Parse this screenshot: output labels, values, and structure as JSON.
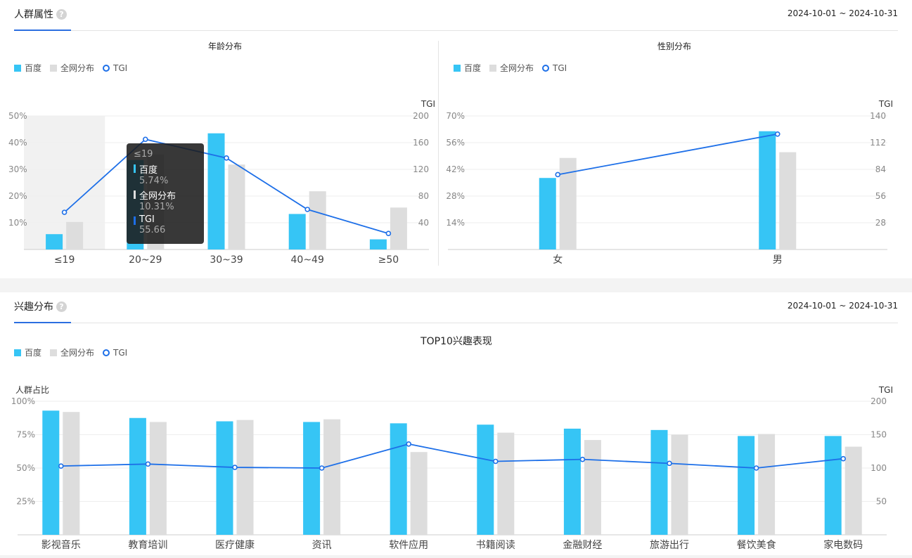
{
  "section_demographics": {
    "title": "人群属性",
    "date_range": "2024-10-01 ~ 2024-10-31"
  },
  "section_interests": {
    "title": "兴趣分布",
    "date_range": "2024-10-01 ~ 2024-10-31"
  },
  "help_glyph": "?",
  "tooltip": {
    "category": "≤19",
    "items": [
      {
        "name": "百度",
        "value": "5.74%",
        "color": "#36c5f5"
      },
      {
        "name": "全网分布",
        "value": "10.31%",
        "color": "#dddddd"
      },
      {
        "name": "TGI",
        "value": "55.66",
        "color": "#1d6fe8"
      }
    ]
  },
  "colors": {
    "baidu": "#36c5f5",
    "network": "#dddddd",
    "tgi": "#1d6fe8"
  },
  "chart_data": [
    {
      "type": "bar",
      "title": "年龄分布",
      "legend": [
        "百度",
        "全网分布",
        "TGI"
      ],
      "categories": [
        "≤19",
        "20~29",
        "30~39",
        "40~49",
        "≥50"
      ],
      "series": [
        {
          "name": "百度",
          "values": [
            5.74,
            33.5,
            43.5,
            13.3,
            3.8
          ]
        },
        {
          "name": "全网分布",
          "values": [
            10.31,
            35.5,
            31.8,
            21.8,
            15.7
          ]
        },
        {
          "name": "TGI",
          "values": [
            55.66,
            165,
            137,
            60,
            24
          ],
          "axis": "right",
          "type": "line"
        }
      ],
      "ylim": [
        0,
        50
      ],
      "y_ticks": [
        "10%",
        "20%",
        "30%",
        "40%",
        "50%"
      ],
      "y2label": "TGI",
      "y2lim": [
        0,
        200
      ],
      "y2_ticks": [
        "40",
        "80",
        "120",
        "160",
        "200"
      ],
      "grid": true,
      "legend_position": "top-left",
      "highlighted_category": "≤19"
    },
    {
      "type": "bar",
      "title": "性别分布",
      "legend": [
        "百度",
        "全网分布",
        "TGI"
      ],
      "categories": [
        "女",
        "男"
      ],
      "series": [
        {
          "name": "百度",
          "values": [
            37.5,
            62
          ]
        },
        {
          "name": "全网分布",
          "values": [
            48,
            51
          ]
        },
        {
          "name": "TGI",
          "values": [
            78.5,
            121
          ],
          "axis": "right",
          "type": "line"
        }
      ],
      "ylim": [
        0,
        70
      ],
      "y_ticks": [
        "14%",
        "28%",
        "42%",
        "56%",
        "70%"
      ],
      "y2label": "TGI",
      "y2lim": [
        0,
        140
      ],
      "y2_ticks": [
        "28",
        "56",
        "84",
        "112",
        "140"
      ],
      "grid": true,
      "legend_position": "top-left"
    },
    {
      "type": "bar",
      "title": "TOP10兴趣表现",
      "legend": [
        "百度",
        "全网分布",
        "TGI"
      ],
      "categories": [
        "影视音乐",
        "教育培训",
        "医疗健康",
        "资讯",
        "软件应用",
        "书籍阅读",
        "金融财经",
        "旅游出行",
        "餐饮美食",
        "家电数码"
      ],
      "series": [
        {
          "name": "百度",
          "values": [
            93,
            87.5,
            85,
            84.5,
            83.5,
            82.5,
            79.5,
            78.5,
            74,
            74
          ]
        },
        {
          "name": "全网分布",
          "values": [
            92,
            84.5,
            86,
            86.5,
            62,
            76.5,
            71,
            75,
            75.5,
            66
          ]
        },
        {
          "name": "TGI",
          "values": [
            103,
            106,
            101,
            100,
            136,
            110,
            113,
            107,
            100,
            114
          ],
          "axis": "right",
          "type": "line"
        }
      ],
      "ylabel": "人群占比",
      "ylim": [
        0,
        100
      ],
      "y_ticks": [
        "25%",
        "50%",
        "75%",
        "100%"
      ],
      "y2label": "TGI",
      "y2lim": [
        0,
        200
      ],
      "y2_ticks": [
        "50",
        "100",
        "150",
        "200"
      ],
      "grid": true,
      "legend_position": "top-left"
    }
  ]
}
